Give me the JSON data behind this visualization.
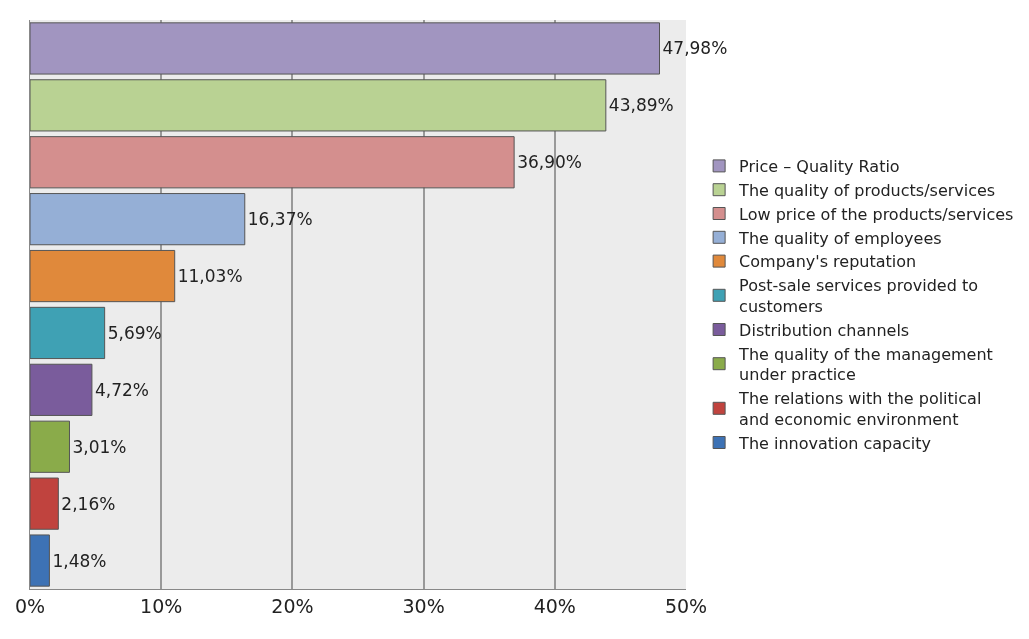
{
  "chart_data": {
    "type": "bar",
    "orientation": "horizontal",
    "categories": [
      null,
      null,
      null,
      null,
      null,
      null,
      null,
      null,
      null,
      null
    ],
    "series": [
      {
        "name": "Price – Quality Ratio",
        "color": "#a195c0",
        "values": [
          47.98,
          null,
          null,
          null,
          null,
          null,
          null,
          null,
          null,
          null
        ],
        "value_labels": [
          "47,98%",
          null,
          null,
          null,
          null,
          null,
          null,
          null,
          null,
          null
        ]
      },
      {
        "name": "The quality of products/services",
        "color": "#b9d293",
        "values": [
          null,
          43.89,
          null,
          null,
          null,
          null,
          null,
          null,
          null,
          null
        ],
        "value_labels": [
          null,
          "43,89%",
          null,
          null,
          null,
          null,
          null,
          null,
          null,
          null
        ]
      },
      {
        "name": "Low price of the products/services",
        "color": "#d48f8e",
        "values": [
          null,
          null,
          36.9,
          null,
          null,
          null,
          null,
          null,
          null,
          null
        ],
        "value_labels": [
          null,
          null,
          "36,90%",
          null,
          null,
          null,
          null,
          null,
          null,
          null
        ]
      },
      {
        "name": "The quality of employees",
        "color": "#95afd6",
        "values": [
          null,
          null,
          null,
          16.37,
          null,
          null,
          null,
          null,
          null,
          null
        ],
        "value_labels": [
          null,
          null,
          null,
          "16,37%",
          null,
          null,
          null,
          null,
          null,
          null
        ]
      },
      {
        "name": "Company's reputation",
        "color": "#e0893b",
        "values": [
          null,
          null,
          null,
          null,
          11.03,
          null,
          null,
          null,
          null,
          null
        ],
        "value_labels": [
          null,
          null,
          null,
          null,
          "11,03%",
          null,
          null,
          null,
          null,
          null
        ]
      },
      {
        "name": "Post-sale services provided to customers",
        "color": "#3fa1b4",
        "values": [
          null,
          null,
          null,
          null,
          null,
          5.69,
          null,
          null,
          null,
          null
        ],
        "value_labels": [
          null,
          null,
          null,
          null,
          null,
          "5,69%",
          null,
          null,
          null,
          null
        ]
      },
      {
        "name": "Distribution channels",
        "color": "#7a5c9c",
        "values": [
          null,
          null,
          null,
          null,
          null,
          null,
          4.72,
          null,
          null,
          null
        ],
        "value_labels": [
          null,
          null,
          null,
          null,
          null,
          null,
          "4,72%",
          null,
          null,
          null
        ]
      },
      {
        "name": "The quality of the management under practice",
        "color": "#8aab4a",
        "values": [
          null,
          null,
          null,
          null,
          null,
          null,
          null,
          3.01,
          null,
          null
        ],
        "value_labels": [
          null,
          null,
          null,
          null,
          null,
          null,
          null,
          "3,01%",
          null,
          null
        ]
      },
      {
        "name": "The relations with the political and economic environment",
        "color": "#c0433e",
        "values": [
          null,
          null,
          null,
          null,
          null,
          null,
          null,
          null,
          2.16,
          null
        ],
        "value_labels": [
          null,
          null,
          null,
          null,
          null,
          null,
          null,
          null,
          "2,16%",
          null
        ]
      },
      {
        "name": "The innovation capacity",
        "color": "#3d72b5",
        "values": [
          null,
          null,
          null,
          null,
          null,
          null,
          null,
          null,
          null,
          1.48
        ],
        "value_labels": [
          null,
          null,
          null,
          null,
          null,
          null,
          null,
          null,
          null,
          "1,48%"
        ]
      }
    ],
    "xlim": [
      0,
      50
    ],
    "xticks": [
      {
        "value": 0,
        "label": "0%"
      },
      {
        "value": 10,
        "label": "10%"
      },
      {
        "value": 20,
        "label": "20%"
      },
      {
        "value": 30,
        "label": "30%"
      },
      {
        "value": 40,
        "label": "40%"
      },
      {
        "value": 50,
        "label": "50%"
      }
    ],
    "grid": "x",
    "legend": "right",
    "tick_labels": "x"
  }
}
